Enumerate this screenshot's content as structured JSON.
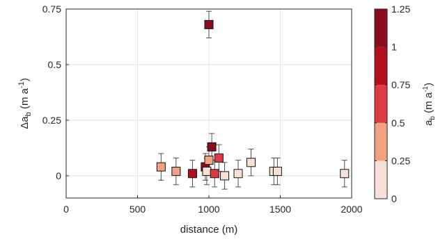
{
  "chart_data": {
    "type": "scatter",
    "xlabel": "distance (m)",
    "xlim": [
      0,
      2000
    ],
    "xticks": [
      "0",
      "500",
      "1000",
      "1500",
      "2000"
    ],
    "ylabel": {
      "base": "Δa",
      "sub": "b",
      "unit_open": " (m a",
      "sup": "-1",
      "unit_close": ")"
    },
    "ylim": [
      -0.1,
      0.75
    ],
    "yticks": [
      "0",
      "0.25",
      "0.5",
      "0.75"
    ],
    "grid": true,
    "colorbar": {
      "label": {
        "base": "a",
        "sub": "b",
        "unit_open": " (m a",
        "sup": "-1",
        "unit_close": ")"
      },
      "range": [
        0,
        1.25
      ],
      "ticks": [
        "0",
        "0.25",
        "0.5",
        "0.75",
        "1",
        "1.25"
      ],
      "colors": [
        "#f7e1d6",
        "#f3a281",
        "#dd3a42",
        "#b3101f",
        "#890c1f"
      ]
    },
    "points": [
      {
        "x": 1000,
        "y": 0.68,
        "err": 0.06,
        "c": 1.2
      },
      {
        "x": 665,
        "y": 0.04,
        "err": 0.06,
        "c": 0.4
      },
      {
        "x": 770,
        "y": 0.02,
        "err": 0.06,
        "c": 0.4
      },
      {
        "x": 885,
        "y": 0.01,
        "err": 0.06,
        "c": 0.8
      },
      {
        "x": 975,
        "y": 0.04,
        "err": 0.06,
        "c": 1.0
      },
      {
        "x": 985,
        "y": 0.02,
        "err": 0.06,
        "c": 0.1
      },
      {
        "x": 1000,
        "y": 0.07,
        "err": 0.06,
        "c": 0.4
      },
      {
        "x": 1020,
        "y": 0.13,
        "err": 0.06,
        "c": 1.1
      },
      {
        "x": 1040,
        "y": 0.01,
        "err": 0.06,
        "c": 0.7
      },
      {
        "x": 1070,
        "y": 0.08,
        "err": 0.06,
        "c": 0.7
      },
      {
        "x": 1110,
        "y": 0.0,
        "err": 0.06,
        "c": 0.1
      },
      {
        "x": 1205,
        "y": 0.01,
        "err": 0.06,
        "c": 0.1
      },
      {
        "x": 1295,
        "y": 0.06,
        "err": 0.06,
        "c": 0.1
      },
      {
        "x": 1455,
        "y": 0.02,
        "err": 0.06,
        "c": 0.1
      },
      {
        "x": 1480,
        "y": 0.02,
        "err": 0.06,
        "c": 0.1
      },
      {
        "x": 1950,
        "y": 0.01,
        "err": 0.06,
        "c": 0.1
      }
    ]
  }
}
